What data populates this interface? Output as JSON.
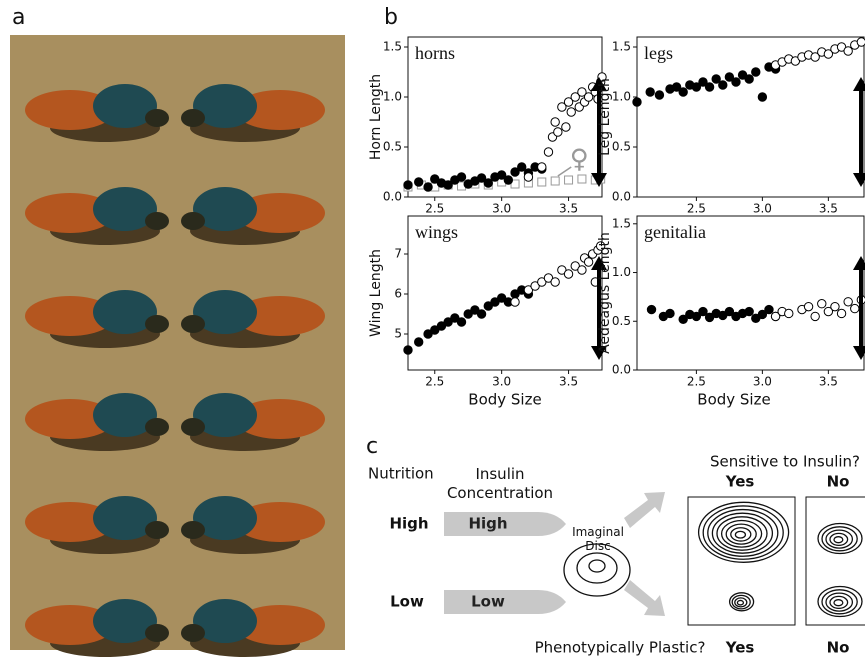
{
  "panel_a": {
    "label": "a"
  },
  "panel_b": {
    "label": "b"
  },
  "chart_data": [
    {
      "type": "scatter",
      "title": "horns",
      "y_label": "Horn Length",
      "annotation": "♀",
      "xlim": [
        2.3,
        3.75
      ],
      "xticks": [
        2.5,
        {
          "value": 3,
          "label": "3.0"
        },
        3.5
      ],
      "ylim": [
        0,
        1.6
      ],
      "yticks": [
        {
          "value": 0,
          "label": "0.0"
        },
        0.5,
        {
          "value": 1,
          "label": "1.0"
        },
        1.5
      ],
      "series": [
        {
          "color": "#999999",
          "marker": "square",
          "filled": false,
          "x": [
            2.3,
            2.4,
            2.5,
            2.6,
            2.7,
            2.8,
            2.9,
            3.0,
            3.1,
            3.2,
            3.3,
            3.4,
            3.5,
            3.6,
            3.7,
            3.74
          ],
          "values": [
            0.1,
            0.12,
            0.1,
            0.12,
            0.11,
            0.13,
            0.12,
            0.15,
            0.13,
            0.14,
            0.15,
            0.16,
            0.17,
            0.18,
            0.17,
            0.18
          ]
        },
        {
          "color": "#000000",
          "marker": "circle",
          "filled": true,
          "x": [
            2.3,
            2.38,
            2.45,
            2.5,
            2.55,
            2.6,
            2.65,
            2.7,
            2.75,
            2.8,
            2.85,
            2.9,
            2.95,
            3.0,
            3.05,
            3.1,
            3.15,
            3.2,
            3.25,
            3.3
          ],
          "values": [
            0.12,
            0.15,
            0.1,
            0.18,
            0.14,
            0.12,
            0.17,
            0.2,
            0.13,
            0.16,
            0.19,
            0.14,
            0.2,
            0.22,
            0.17,
            0.25,
            0.3,
            0.24,
            0.3,
            0.28
          ]
        },
        {
          "color": "#000000",
          "marker": "circle",
          "filled": false,
          "x": [
            3.2,
            3.3,
            3.35,
            3.38,
            3.4,
            3.42,
            3.45,
            3.48,
            3.5,
            3.52,
            3.55,
            3.58,
            3.6,
            3.62,
            3.65,
            3.68,
            3.7,
            3.72,
            3.74,
            3.75
          ],
          "values": [
            0.2,
            0.3,
            0.45,
            0.6,
            0.75,
            0.65,
            0.9,
            0.7,
            0.95,
            0.85,
            1.0,
            0.9,
            1.05,
            0.95,
            1.0,
            1.1,
            1.05,
            0.98,
            1.15,
            1.2
          ]
        }
      ]
    },
    {
      "type": "scatter",
      "title": "legs",
      "y_label": "Leg Length",
      "xlim": [
        2.05,
        3.77
      ],
      "xticks": [
        2.5,
        {
          "value": 3,
          "label": "3.0"
        },
        3.5
      ],
      "ylim": [
        0,
        1.6
      ],
      "yticks": [
        {
          "value": 0,
          "label": "0.0"
        },
        0.5,
        {
          "value": 1,
          "label": "1.0"
        },
        1.5
      ],
      "series": [
        {
          "color": "#000000",
          "marker": "circle",
          "filled": true,
          "x": [
            2.05,
            2.15,
            2.22,
            2.3,
            2.35,
            2.4,
            2.45,
            2.5,
            2.55,
            2.6,
            2.65,
            2.7,
            2.75,
            2.8,
            2.85,
            2.9,
            2.95,
            3.0,
            3.05,
            3.1
          ],
          "values": [
            0.95,
            1.05,
            1.02,
            1.08,
            1.1,
            1.05,
            1.12,
            1.1,
            1.15,
            1.1,
            1.18,
            1.12,
            1.2,
            1.15,
            1.22,
            1.18,
            1.25,
            1.0,
            1.3,
            1.28
          ]
        },
        {
          "color": "#000000",
          "marker": "circle",
          "filled": false,
          "x": [
            3.1,
            3.15,
            3.2,
            3.25,
            3.3,
            3.35,
            3.4,
            3.45,
            3.5,
            3.55,
            3.6,
            3.65,
            3.7,
            3.75
          ],
          "values": [
            1.32,
            1.35,
            1.38,
            1.36,
            1.4,
            1.42,
            1.4,
            1.45,
            1.43,
            1.48,
            1.5,
            1.46,
            1.52,
            1.55
          ]
        }
      ]
    },
    {
      "type": "scatter",
      "title": "wings",
      "y_label": "Wing Length",
      "x_label": "Body Size",
      "xlim": [
        2.3,
        3.75
      ],
      "xticks": [
        2.5,
        {
          "value": 3,
          "label": "3.0"
        },
        3.5
      ],
      "ylim": [
        4.1,
        7.95
      ],
      "yticks": [
        5,
        6,
        7
      ],
      "series": [
        {
          "color": "#000000",
          "marker": "circle",
          "filled": true,
          "x": [
            2.3,
            2.38,
            2.45,
            2.5,
            2.55,
            2.6,
            2.65,
            2.7,
            2.75,
            2.8,
            2.85,
            2.9,
            2.95,
            3.0,
            3.05,
            3.1,
            3.15,
            3.2
          ],
          "values": [
            4.6,
            4.8,
            5.0,
            5.1,
            5.2,
            5.3,
            5.4,
            5.3,
            5.5,
            5.6,
            5.5,
            5.7,
            5.8,
            5.9,
            5.8,
            6.0,
            6.1,
            6.0
          ]
        },
        {
          "color": "#000000",
          "marker": "circle",
          "filled": false,
          "x": [
            3.1,
            3.2,
            3.25,
            3.3,
            3.35,
            3.4,
            3.45,
            3.5,
            3.55,
            3.6,
            3.62,
            3.65,
            3.68,
            3.7,
            3.72,
            3.74
          ],
          "values": [
            5.8,
            6.1,
            6.2,
            6.3,
            6.4,
            6.3,
            6.6,
            6.5,
            6.7,
            6.6,
            6.9,
            6.8,
            7.0,
            6.3,
            7.1,
            7.2
          ]
        }
      ]
    },
    {
      "type": "scatter",
      "title": "genitalia",
      "y_label": "Aedeagus Length",
      "x_label": "Body Size",
      "xlim": [
        2.05,
        3.77
      ],
      "xticks": [
        2.5,
        {
          "value": 3,
          "label": "3.0"
        },
        3.5
      ],
      "ylim": [
        0,
        1.58
      ],
      "yticks": [
        {
          "value": 0,
          "label": "0.0"
        },
        0.5,
        {
          "value": 1,
          "label": "1.0"
        },
        1.5
      ],
      "series": [
        {
          "color": "#000000",
          "marker": "circle",
          "filled": true,
          "x": [
            2.16,
            2.25,
            2.3,
            2.4,
            2.45,
            2.5,
            2.55,
            2.6,
            2.65,
            2.7,
            2.75,
            2.8,
            2.85,
            2.9,
            2.95,
            3.0,
            3.05,
            3.1
          ],
          "values": [
            0.62,
            0.55,
            0.58,
            0.52,
            0.57,
            0.55,
            0.6,
            0.54,
            0.58,
            0.56,
            0.6,
            0.55,
            0.58,
            0.6,
            0.53,
            0.57,
            0.62,
            0.55
          ]
        },
        {
          "color": "#000000",
          "marker": "circle",
          "filled": false,
          "x": [
            3.1,
            3.15,
            3.2,
            3.3,
            3.35,
            3.4,
            3.45,
            3.5,
            3.55,
            3.6,
            3.65,
            3.7,
            3.75
          ],
          "values": [
            0.55,
            0.6,
            0.58,
            0.62,
            0.65,
            0.55,
            0.68,
            0.6,
            0.65,
            0.58,
            0.7,
            0.63,
            0.72
          ]
        }
      ]
    }
  ],
  "panel_c": {
    "label": "c",
    "nutrition_header": "Nutrition",
    "insulin_header": "Insulin Concentration",
    "sensitivity_question": "Sensitive to Insulin?",
    "sensitivity_answers": [
      "Yes",
      "No"
    ],
    "rows": [
      {
        "nutrition": "High",
        "insulin": "High"
      },
      {
        "nutrition": "Low",
        "insulin": "Low"
      }
    ],
    "disc_label": "Imaginal Disc",
    "plasticity_question": "Phenotypically Plastic?",
    "plasticity_answers": [
      "Yes",
      "No"
    ]
  }
}
